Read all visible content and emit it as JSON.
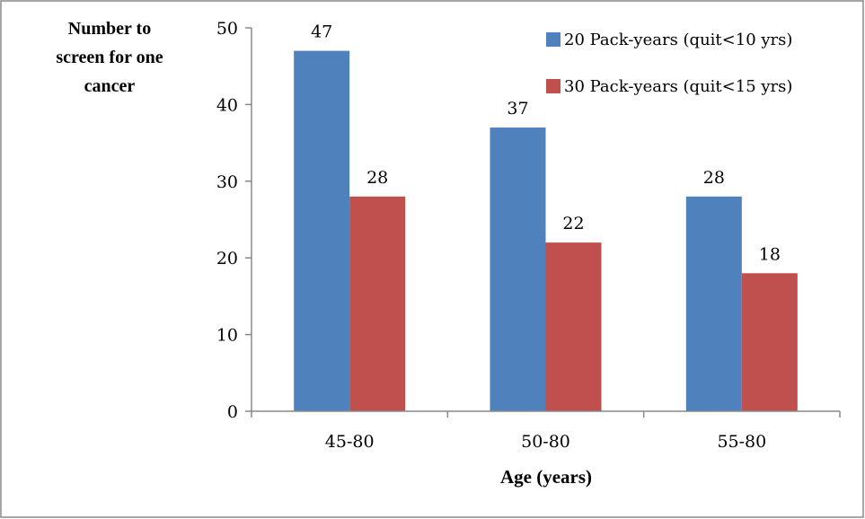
{
  "chart_data": {
    "type": "bar",
    "categories": [
      "45-80",
      "50-80",
      "55-80"
    ],
    "series": [
      {
        "name": "20 Pack-years (quit<10 yrs)",
        "values": [
          47,
          37,
          28
        ],
        "color": "#4f81bd"
      },
      {
        "name": "30 Pack-years (quit<15 yrs)",
        "values": [
          28,
          22,
          18
        ],
        "color": "#c0504d"
      }
    ],
    "ylabel_lines": [
      "Number to",
      "screen for one",
      "cancer"
    ],
    "xlabel": "Age (years)",
    "ylim": [
      0,
      50
    ],
    "yticks": [
      0,
      10,
      20,
      30,
      40,
      50
    ],
    "grid": false,
    "legend": "top-right"
  }
}
